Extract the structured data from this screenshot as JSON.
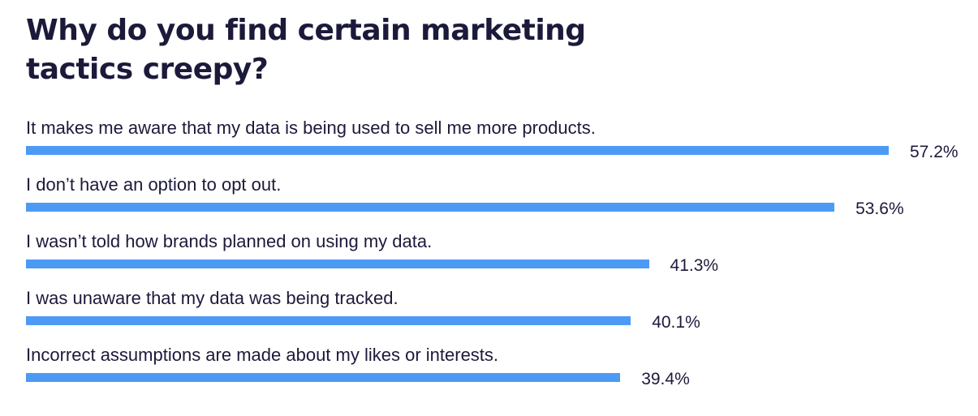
{
  "chart_data": {
    "type": "bar",
    "orientation": "horizontal",
    "title": "Why do you find certain marketing tactics creepy?",
    "categories": [
      "It makes me aware that my data is being used to sell me more products.",
      "I don’t have an option to opt out.",
      "I wasn’t told how brands planned on using my data.",
      "I was unaware that my data was being tracked.",
      "Incorrect assumptions are made about my likes or interests."
    ],
    "values": [
      57.2,
      53.6,
      41.3,
      40.1,
      39.4
    ],
    "value_labels": [
      "57.2%",
      "53.6%",
      "41.3%",
      "40.1%",
      "39.4%"
    ],
    "bar_color": "#4d9af5",
    "text_color": "#1c1a3a",
    "grid": false,
    "legend": false
  }
}
